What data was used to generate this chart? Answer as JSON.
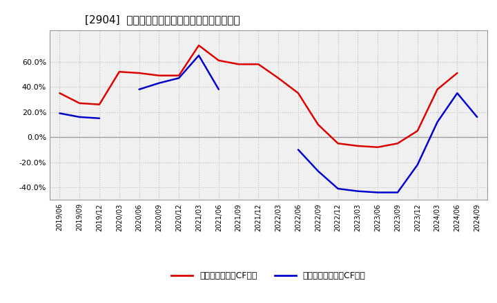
{
  "title": "[2904]  有利子負債キャッシュフロー比率の推移",
  "legend_red": "有利子負債営業CF比率",
  "legend_blue": "有利子負債フリーCF比率",
  "x_labels": [
    "2019/06",
    "2019/09",
    "2019/12",
    "2020/03",
    "2020/06",
    "2020/09",
    "2020/12",
    "2021/03",
    "2021/06",
    "2021/09",
    "2021/12",
    "2022/03",
    "2022/06",
    "2022/09",
    "2022/12",
    "2023/03",
    "2023/06",
    "2023/09",
    "2023/12",
    "2024/03",
    "2024/06",
    "2024/09"
  ],
  "red_values": [
    0.35,
    0.27,
    0.26,
    0.52,
    0.51,
    0.49,
    0.49,
    0.73,
    0.61,
    0.58,
    0.58,
    0.47,
    0.35,
    0.1,
    -0.05,
    -0.07,
    -0.08,
    -0.05,
    0.05,
    0.38,
    0.51,
    null
  ],
  "blue_values": [
    0.19,
    0.16,
    0.15,
    null,
    0.38,
    0.43,
    0.47,
    0.65,
    0.38,
    null,
    null,
    null,
    -0.1,
    -0.27,
    -0.41,
    -0.43,
    -0.44,
    -0.44,
    -0.22,
    0.12,
    0.35,
    0.16
  ],
  "ylim": [
    -0.5,
    0.85
  ],
  "yticks": [
    -0.4,
    -0.2,
    0.0,
    0.2,
    0.4,
    0.6
  ],
  "background_color": "#ffffff",
  "plot_bg_color": "#f0f0f0",
  "grid_color": "#bbbbbb",
  "red_color": "#dd0000",
  "blue_color": "#0000cc",
  "title_fontsize": 11,
  "legend_fontsize": 9,
  "tick_fontsize": 7,
  "ytick_fontsize": 8
}
